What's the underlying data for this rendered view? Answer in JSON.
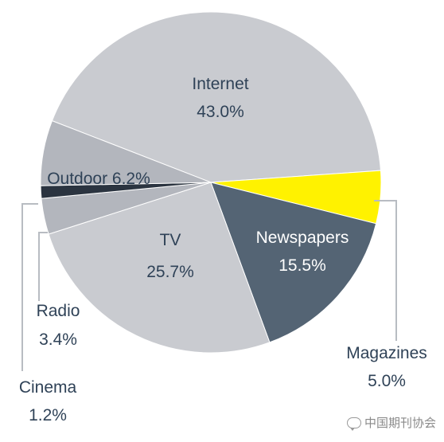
{
  "chart_data": {
    "type": "pie",
    "slices": [
      {
        "label": "Internet",
        "value_text": "43.0%",
        "value": 43.0,
        "color": "#c9cbd0",
        "text_color": "#2f4257"
      },
      {
        "label": "Magazines",
        "value_text": "5.0%",
        "value": 5.0,
        "color": "#fff200",
        "text_color": "#2f4257"
      },
      {
        "label": "Newspapers",
        "value_text": "15.5%",
        "value": 15.5,
        "color": "#546474",
        "text_color": "#ffffff"
      },
      {
        "label": "TV",
        "value_text": "25.7%",
        "value": 25.7,
        "color": "#c9cbd0",
        "text_color": "#2f4257"
      },
      {
        "label": "Radio",
        "value_text": "3.4%",
        "value": 3.4,
        "color": "#b3b6bd",
        "text_color": "#2f4257"
      },
      {
        "label": "Cinema",
        "value_text": "1.2%",
        "value": 1.2,
        "color": "#2b3440",
        "text_color": "#2f4257"
      },
      {
        "label": "Outdoor",
        "value_text": "6.2%",
        "value": 6.2,
        "color": "#b3b6bd",
        "text_color": "#2f4257"
      }
    ],
    "start_angle_deg": 0,
    "direction": "clockwise",
    "legend": "none"
  },
  "watermark": {
    "text": "中国期刊协会",
    "icon": "wechat-icon"
  }
}
